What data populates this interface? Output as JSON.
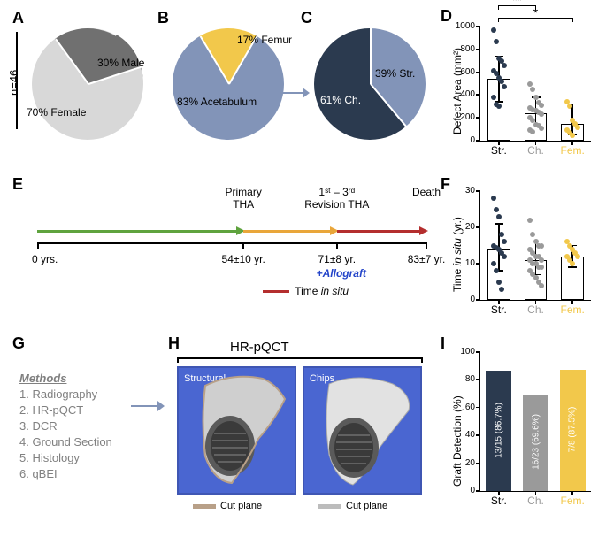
{
  "panelA": {
    "label": "A",
    "n_label": "n=46",
    "segments": [
      {
        "label": "30% Male",
        "pct": 30,
        "color": "#707070"
      },
      {
        "label": "70% Female",
        "pct": 70,
        "color": "#d8d8d8"
      }
    ]
  },
  "panelB": {
    "label": "B",
    "segments": [
      {
        "label": "17% Femur",
        "pct": 17,
        "color": "#f2c84b"
      },
      {
        "label": "83% Acetabulum",
        "pct": 83,
        "color": "#8294b8"
      }
    ]
  },
  "panelC": {
    "label": "C",
    "segments": [
      {
        "label": "39% Str.",
        "pct": 39,
        "color": "#8294b8"
      },
      {
        "label": "61% Ch.",
        "pct": 61,
        "color": "#2b3a4f"
      }
    ]
  },
  "panelD": {
    "label": "D",
    "ylabel": "Defect Area (mm²)",
    "ylim": [
      0,
      1000
    ],
    "yticks": [
      0,
      200,
      400,
      600,
      800,
      1000
    ],
    "groups": [
      {
        "name": "Str.",
        "color": "#2b3a4f",
        "mean": 540,
        "err_low": 340,
        "err_high": 740,
        "points": [
          970,
          870,
          720,
          700,
          660,
          610,
          590,
          550,
          520,
          470,
          380,
          320,
          300
        ]
      },
      {
        "name": "Ch.",
        "color": "#9a9a9a",
        "mean": 240,
        "err_low": 120,
        "err_high": 380,
        "points": [
          500,
          450,
          380,
          330,
          310,
          290,
          270,
          260,
          250,
          230,
          200,
          180,
          140,
          130,
          110,
          90,
          80
        ]
      },
      {
        "name": "Fem.",
        "color": "#f2c84b",
        "mean": 150,
        "err_low": 50,
        "err_high": 320,
        "points": [
          340,
          300,
          180,
          150,
          120,
          90,
          70,
          50
        ]
      }
    ],
    "sig": [
      {
        "from": 0,
        "to": 1,
        "stars": "**"
      },
      {
        "from": 0,
        "to": 2,
        "stars": "*"
      }
    ]
  },
  "panelE": {
    "label": "E",
    "start_label": "0 yrs.",
    "events": [
      {
        "label_top": "Primary\nTHA",
        "label_bot": "54±10 yr.",
        "x": 0.53,
        "arrow_color": "#5fa33e",
        "seg_from": 0.0
      },
      {
        "label_top": "1ˢᵗ – 3ʳᵈ\nRevision THA",
        "label_bot": "71±8 yr.",
        "x": 0.77,
        "arrow_color": "#e9a63a",
        "seg_from": 0.53
      },
      {
        "label_top": "Death",
        "label_bot": "83±7 yr.",
        "x": 1.0,
        "arrow_color": "#b42e2e",
        "seg_from": 0.77
      }
    ],
    "allograft_label": "+Allograft",
    "insitu_legend": "Time in situ",
    "insitu_color": "#b42e2e"
  },
  "panelF": {
    "label": "F",
    "ylabel": "Time in situ (yr.)",
    "ylim": [
      0,
      30
    ],
    "yticks": [
      0,
      10,
      20,
      30
    ],
    "groups": [
      {
        "name": "Str.",
        "color": "#2b3a4f",
        "mean": 14,
        "err_low": 8,
        "err_high": 21,
        "points": [
          28,
          25,
          23,
          18,
          16,
          15,
          14.5,
          14,
          13,
          12,
          10,
          8,
          5,
          3
        ]
      },
      {
        "name": "Ch.",
        "color": "#9a9a9a",
        "mean": 11,
        "err_low": 7,
        "err_high": 16,
        "points": [
          22,
          18,
          16,
          15,
          15,
          14,
          13,
          12,
          12,
          11,
          11,
          10,
          10,
          9,
          9,
          8,
          7,
          6,
          5,
          4
        ]
      },
      {
        "name": "Fem.",
        "color": "#f2c84b",
        "mean": 12,
        "err_low": 9,
        "err_high": 15,
        "points": [
          16,
          15,
          14,
          13,
          12,
          12,
          11,
          10
        ]
      }
    ]
  },
  "panelG": {
    "label": "G",
    "title": "Methods",
    "items": [
      "Radiography",
      "HR-pQCT",
      "DCR",
      "Ground Section",
      "Histology",
      "qBEI"
    ],
    "arrow_color": "#8294b8"
  },
  "panelH": {
    "label": "H",
    "title": "HR-pQCT",
    "left_caption": "Structural",
    "right_caption": "Chips",
    "cut_plane_label": "Cut plane",
    "left_cut_color": "#b8a088",
    "right_cut_color": "#bcbcbc",
    "panel_bg": "#4a66d1"
  },
  "panelI": {
    "label": "I",
    "ylabel": "Graft Detection (%)",
    "ylim": [
      0,
      100
    ],
    "yticks": [
      0,
      20,
      40,
      60,
      80,
      100
    ],
    "bars": [
      {
        "name": "Str.",
        "value": 86.7,
        "text": "13/15 (86.7%)",
        "color": "#2b3a4f",
        "text_color": "#ffffff"
      },
      {
        "name": "Ch.",
        "value": 69.6,
        "text": "16/23 (69.6%)",
        "color": "#9a9a9a",
        "text_color": "#ffffff"
      },
      {
        "name": "Fem.",
        "value": 87.5,
        "text": "7/8 (87.5%)",
        "color": "#f2c84b",
        "text_color": "#ffffff"
      }
    ]
  },
  "cat_label_colors": {
    "Str.": "#000000",
    "Ch.": "#9a9a9a",
    "Fem.": "#f2c84b"
  }
}
